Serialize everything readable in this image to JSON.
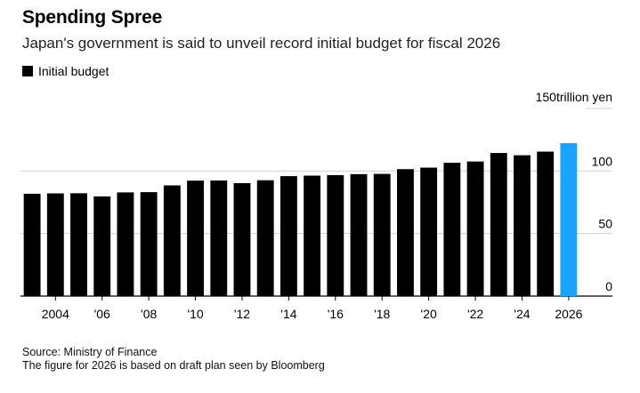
{
  "title": "Spending Spree",
  "subtitle": "Japan's government is said to unveil record initial budget for fiscal 2026",
  "legend_label": "Initial budget",
  "footer": {
    "source": "Source: Ministry of Finance",
    "note": "The figure for 2026 is based on draft plan seen by Bloomberg"
  },
  "colors": {
    "bar": "#000000",
    "highlight": "#1aa3ff"
  },
  "chart_data": {
    "type": "bar",
    "unit_label": "trillion yen",
    "categories": [
      "2003",
      "2004",
      "2005",
      "2006",
      "2007",
      "2008",
      "2009",
      "2010",
      "2011",
      "2012",
      "2013",
      "2014",
      "2015",
      "2016",
      "2017",
      "2018",
      "2019",
      "2020",
      "2021",
      "2022",
      "2023",
      "2024",
      "2025",
      "2026"
    ],
    "x_tick_labels": {
      "2004": "2004",
      "2006": "'06",
      "2008": "'08",
      "2010": "'10",
      "2012": "'12",
      "2014": "'14",
      "2016": "'16",
      "2018": "'18",
      "2020": "'20",
      "2022": "'22",
      "2024": "'24",
      "2026": "2026"
    },
    "series": [
      {
        "values": [
          81.8,
          82.1,
          82.2,
          79.7,
          82.9,
          83.1,
          88.5,
          92.3,
          92.4,
          90.3,
          92.6,
          95.9,
          96.3,
          96.7,
          97.5,
          97.7,
          101.5,
          102.7,
          106.6,
          107.6,
          114.4,
          112.6,
          115.5,
          122.3
        ]
      }
    ],
    "highlight_category": "2026",
    "ylim": [
      0,
      150
    ],
    "y_ticks": [
      0,
      50,
      100,
      150
    ],
    "grid": true
  }
}
